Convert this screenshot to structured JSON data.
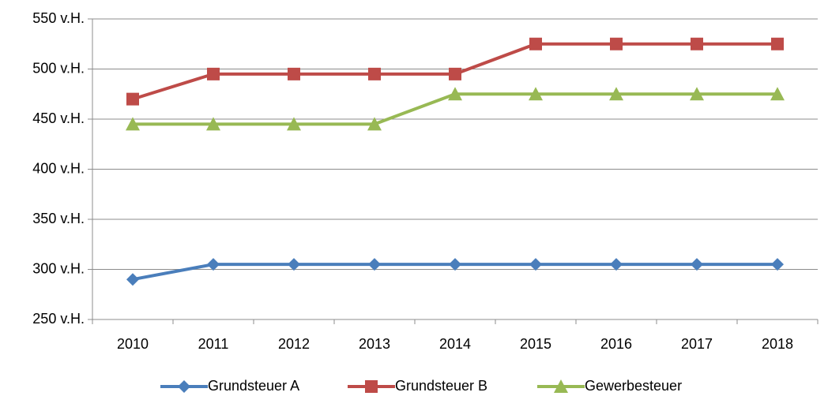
{
  "chart_data": {
    "type": "line",
    "categories": [
      "2010",
      "2011",
      "2012",
      "2013",
      "2014",
      "2015",
      "2016",
      "2017",
      "2018"
    ],
    "series": [
      {
        "name": "Grundsteuer A",
        "color": "#4a7ebb",
        "marker": "diamond",
        "values": [
          290,
          305,
          305,
          305,
          305,
          305,
          305,
          305,
          305
        ]
      },
      {
        "name": "Grundsteuer B",
        "color": "#be4b48",
        "marker": "square",
        "values": [
          470,
          495,
          495,
          495,
          495,
          525,
          525,
          525,
          525
        ]
      },
      {
        "name": "Gewerbesteuer",
        "color": "#98b954",
        "marker": "triangle",
        "values": [
          445,
          445,
          445,
          445,
          475,
          475,
          475,
          475,
          475
        ]
      }
    ],
    "ylim": [
      250,
      550
    ],
    "yticks": [
      {
        "value": 250,
        "label": "250 v.H."
      },
      {
        "value": 300,
        "label": "300 v.H."
      },
      {
        "value": 350,
        "label": "350 v.H."
      },
      {
        "value": 400,
        "label": "400 v.H."
      },
      {
        "value": 450,
        "label": "450 v.H."
      },
      {
        "value": 500,
        "label": "500 v.H."
      },
      {
        "value": 550,
        "label": "550 v.H."
      }
    ],
    "grid": true,
    "legend": "bottom"
  }
}
